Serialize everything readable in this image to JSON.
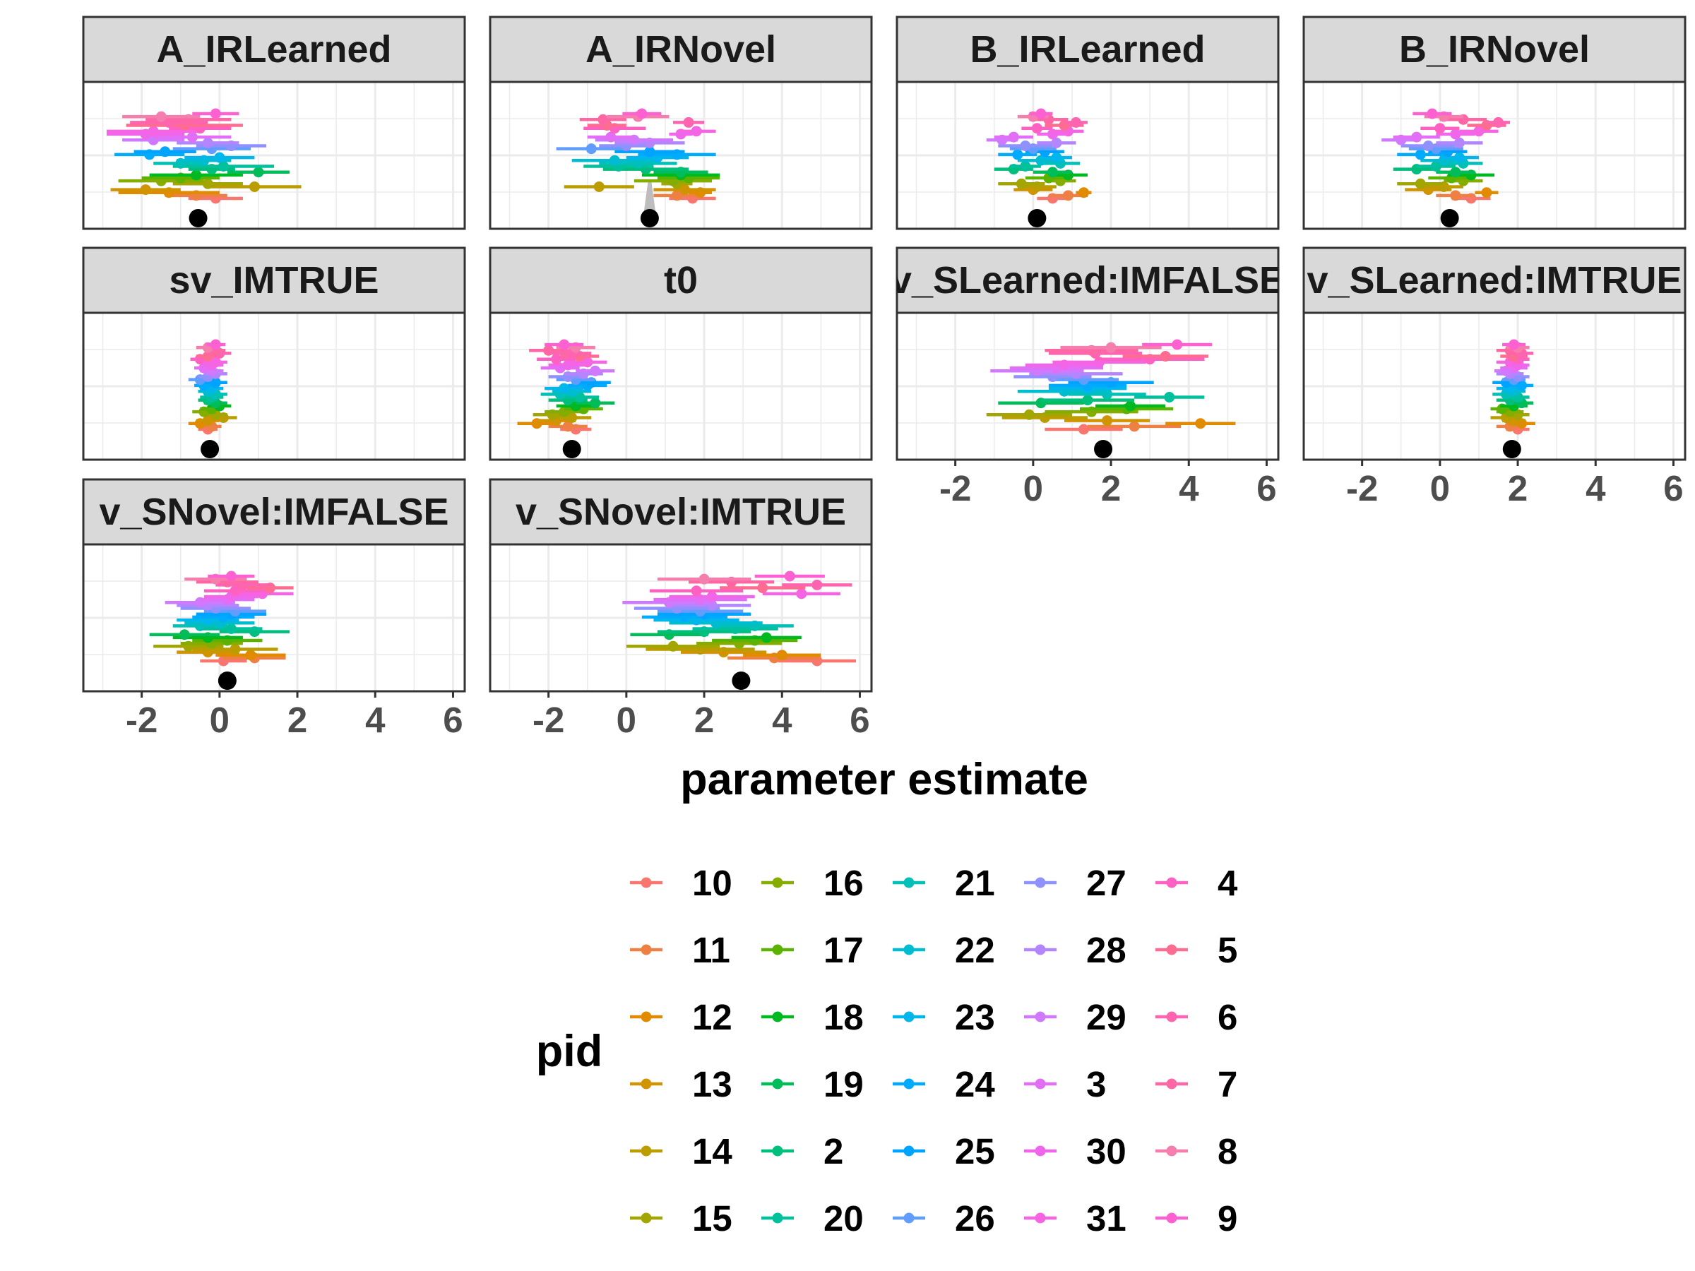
{
  "chart_data": {
    "type": "scatter",
    "facet_variable_order": [
      "A_IRLearned",
      "A_IRNovel",
      "B_IRLearned",
      "B_IRNovel",
      "sv_IMTRUE",
      "t0",
      "v_SLearned:IMFALSE",
      "v_SLearned:IMTRUE",
      "v_SNovel:IMFALSE",
      "v_SNovel:IMTRUE"
    ],
    "xlabel": "parameter estimate",
    "ylabel": "",
    "xlim": [
      -3.5,
      6.3
    ],
    "x_ticks": [
      -2,
      0,
      2,
      4,
      6
    ],
    "x_tick_labels": [
      "-2",
      "0",
      "2",
      "4",
      "6"
    ],
    "grid": true,
    "legend_title": "pid",
    "legend_placement": "bottom",
    "participants": [
      "10",
      "11",
      "12",
      "13",
      "14",
      "15",
      "16",
      "17",
      "18",
      "19",
      "2",
      "20",
      "21",
      "22",
      "23",
      "24",
      "25",
      "26",
      "27",
      "28",
      "29",
      "3",
      "30",
      "31",
      "4",
      "5",
      "6",
      "7",
      "8",
      "9"
    ],
    "participant_colors": [
      "#F8766D",
      "#EE8043",
      "#E08B00",
      "#CF9400",
      "#BB9D00",
      "#A3A500",
      "#85AD00",
      "#5BB300",
      "#00B81F",
      "#00BC59",
      "#00BF7D",
      "#00C19C",
      "#00C0B7",
      "#00BCD1",
      "#00B6EB",
      "#00ABFD",
      "#00A3FF",
      "#619CFF",
      "#8F91FF",
      "#B385FF",
      "#D079FF",
      "#E36EF6",
      "#F066EA",
      "#F564E3",
      "#FF61C3",
      "#FF6C91",
      "#FF64B0",
      "#FF67A4",
      "#F47FAE",
      "#FD61D1"
    ],
    "facets": [
      {
        "title": "A_IRLearned",
        "group_estimate": -0.55,
        "estimates": [
          -0.1,
          -0.6,
          -1.3,
          -1.9,
          0.9,
          -0.3,
          -1.5,
          -1.0,
          -0.6,
          1.0,
          -0.2,
          0.1,
          -1.0,
          -0.4,
          0.0,
          -1.8,
          -1.4,
          -0.2,
          0.3,
          -0.3,
          -1.7,
          -0.7,
          -1.9,
          -1.7,
          -0.5,
          -0.9,
          -1.3,
          -0.8,
          -1.5,
          -0.1
        ],
        "half_widths": [
          0.7,
          0.8,
          1.3,
          0.9,
          1.2,
          0.9,
          1.1,
          1.0,
          1.2,
          0.8,
          0.6,
          1.3,
          0.7,
          0.7,
          0.9,
          0.9,
          0.8,
          1.0,
          0.9,
          0.8,
          0.8,
          1.0,
          1.0,
          1.2,
          0.8,
          1.5,
          1.0,
          1.1,
          1.0,
          0.6
        ]
      },
      {
        "title": "A_IRNovel",
        "group_estimate": 0.6,
        "estimates": [
          1.7,
          1.3,
          1.9,
          1.5,
          -0.7,
          1.3,
          1.2,
          1.6,
          1.4,
          1.4,
          0.5,
          -0.2,
          0.3,
          -0.3,
          0.8,
          1.3,
          0.6,
          -0.9,
          0.0,
          0.6,
          0.2,
          -0.4,
          1.4,
          1.8,
          -0.3,
          -0.5,
          1.6,
          -0.6,
          0.3,
          0.4
        ],
        "half_widths": [
          0.6,
          0.6,
          0.3,
          0.8,
          0.9,
          0.4,
          1.0,
          0.8,
          1.0,
          0.7,
          1.1,
          0.9,
          1.0,
          1.1,
          0.8,
          1.0,
          0.9,
          0.9,
          0.7,
          0.9,
          1.0,
          0.6,
          0.3,
          0.5,
          0.8,
          0.5,
          0.4,
          0.6,
          0.8,
          0.5
        ],
        "has_thin_band": true
      },
      {
        "title": "B_IRLearned",
        "group_estimate": 0.1,
        "estimates": [
          0.5,
          0.9,
          1.3,
          0.0,
          0.1,
          -0.3,
          0.7,
          0.4,
          0.9,
          0.5,
          -0.5,
          -0.2,
          0.7,
          0.2,
          0.6,
          -0.4,
          0.3,
          0.0,
          -0.2,
          0.6,
          -0.8,
          -0.5,
          0.5,
          0.9,
          0.1,
          0.8,
          1.1,
          0.4,
          0.0,
          0.2
        ],
        "half_widths": [
          0.4,
          0.5,
          0.2,
          0.5,
          0.5,
          0.6,
          0.4,
          0.6,
          0.5,
          0.5,
          0.5,
          0.4,
          0.5,
          0.6,
          0.4,
          0.5,
          0.5,
          0.6,
          0.7,
          0.5,
          0.4,
          0.5,
          0.4,
          0.4,
          0.4,
          0.5,
          0.3,
          0.5,
          0.4,
          0.3
        ]
      },
      {
        "title": "B_IRNovel",
        "group_estimate": 0.25,
        "estimates": [
          0.8,
          0.4,
          1.2,
          -0.3,
          0.1,
          -0.5,
          0.6,
          0.3,
          0.8,
          0.4,
          -0.6,
          -0.1,
          0.6,
          0.1,
          0.5,
          -0.5,
          0.2,
          -0.1,
          -0.3,
          0.5,
          -1.0,
          -0.6,
          0.4,
          1.0,
          0.0,
          1.2,
          1.5,
          0.6,
          0.1,
          -0.2
        ],
        "half_widths": [
          0.5,
          0.5,
          0.3,
          0.6,
          0.5,
          0.6,
          0.5,
          0.6,
          0.6,
          0.5,
          0.6,
          0.5,
          0.5,
          0.6,
          0.5,
          0.6,
          0.5,
          0.7,
          0.7,
          0.6,
          0.5,
          0.6,
          0.5,
          0.5,
          0.5,
          0.5,
          0.3,
          0.6,
          0.5,
          0.5
        ]
      },
      {
        "title": "sv_IMTRUE",
        "group_estimate": -0.25,
        "estimates": [
          -0.3,
          -0.2,
          -0.5,
          -0.3,
          0.1,
          -0.1,
          -0.4,
          -0.2,
          0.0,
          -0.1,
          -0.3,
          -0.2,
          -0.1,
          -0.3,
          -0.2,
          -0.4,
          -0.1,
          -0.5,
          -0.3,
          -0.1,
          -0.2,
          -0.4,
          -0.2,
          -0.1,
          -0.5,
          -0.3,
          0.0,
          -0.1,
          -0.3,
          -0.1
        ],
        "half_widths": [
          0.25,
          0.25,
          0.3,
          0.3,
          0.35,
          0.3,
          0.3,
          0.3,
          0.3,
          0.3,
          0.25,
          0.3,
          0.3,
          0.25,
          0.3,
          0.25,
          0.3,
          0.3,
          0.25,
          0.3,
          0.3,
          0.25,
          0.3,
          0.3,
          0.25,
          0.3,
          0.3,
          0.25,
          0.3,
          0.25
        ]
      },
      {
        "title": "t0",
        "group_estimate": -1.4,
        "estimates": [
          -1.3,
          -1.5,
          -2.3,
          -1.8,
          -1.4,
          -1.9,
          -1.6,
          -1.1,
          -1.3,
          -0.8,
          -1.5,
          -1.2,
          -1.7,
          -1.4,
          -1.6,
          -1.0,
          -0.9,
          -1.3,
          -1.5,
          -1.1,
          -0.8,
          -1.7,
          -1.5,
          -1.0,
          -1.8,
          -1.2,
          -1.4,
          -2.0,
          -1.3,
          -1.6
        ],
        "half_widths": [
          0.4,
          0.5,
          0.5,
          0.5,
          0.5,
          0.5,
          0.5,
          0.5,
          0.5,
          0.5,
          0.5,
          0.5,
          0.5,
          0.5,
          0.5,
          0.5,
          0.5,
          0.5,
          0.5,
          0.5,
          0.5,
          0.5,
          0.5,
          0.5,
          0.5,
          0.5,
          0.5,
          0.5,
          0.5,
          0.5
        ]
      },
      {
        "title": "v_SLearned:IMFALSE",
        "group_estimate": 1.8,
        "estimates": [
          1.3,
          2.6,
          4.3,
          1.9,
          0.3,
          -0.1,
          1.5,
          2.4,
          2.5,
          0.2,
          1.4,
          3.5,
          1.9,
          0.8,
          1.4,
          1.4,
          2.0,
          1.3,
          0.5,
          1.1,
          0.1,
          0.6,
          0.8,
          1.7,
          3.0,
          3.4,
          1.6,
          1.5,
          2.0,
          3.7
        ],
        "half_widths": [
          1.0,
          1.2,
          0.9,
          1.1,
          1.1,
          1.1,
          1.2,
          1.2,
          0.9,
          1.1,
          1.2,
          0.9,
          1.0,
          1.2,
          1.0,
          1.0,
          1.1,
          0.9,
          1.0,
          1.2,
          1.2,
          1.2,
          1.0,
          1.2,
          1.4,
          1.1,
          1.2,
          1.2,
          1.3,
          0.9
        ]
      },
      {
        "title": "v_SLearned:IMTRUE",
        "group_estimate": 1.85,
        "estimates": [
          2.0,
          1.8,
          2.1,
          1.9,
          1.7,
          2.0,
          1.8,
          1.6,
          1.9,
          2.1,
          1.8,
          2.0,
          1.7,
          1.9,
          1.8,
          2.1,
          1.7,
          1.9,
          2.0,
          1.8,
          1.7,
          1.9,
          2.0,
          1.8,
          2.0,
          1.9,
          2.1,
          1.8,
          2.0,
          1.9
        ],
        "half_widths": [
          0.3,
          0.35,
          0.35,
          0.3,
          0.4,
          0.3,
          0.35,
          0.3,
          0.35,
          0.3,
          0.35,
          0.3,
          0.35,
          0.3,
          0.35,
          0.3,
          0.35,
          0.3,
          0.3,
          0.35,
          0.3,
          0.35,
          0.3,
          0.35,
          0.3,
          0.35,
          0.3,
          0.35,
          0.3,
          0.3
        ]
      },
      {
        "title": "v_SNovel:IMFALSE",
        "group_estimate": 0.2,
        "estimates": [
          0.1,
          0.9,
          0.8,
          -0.3,
          0.4,
          -0.8,
          -0.2,
          0.2,
          -0.3,
          -0.9,
          0.9,
          0.3,
          -0.5,
          0.0,
          -0.3,
          0.1,
          0.3,
          0.4,
          -0.1,
          -0.3,
          -0.5,
          0.2,
          0.3,
          1.1,
          0.4,
          1.3,
          0.6,
          0.2,
          -0.1,
          0.3
        ],
        "half_widths": [
          0.6,
          0.8,
          0.9,
          0.8,
          1.1,
          0.9,
          0.8,
          0.9,
          0.9,
          0.9,
          0.9,
          0.8,
          0.7,
          0.9,
          0.8,
          0.8,
          0.9,
          0.8,
          0.9,
          0.8,
          0.9,
          0.7,
          0.7,
          0.8,
          0.8,
          0.6,
          0.7,
          0.8,
          0.8,
          0.6
        ]
      },
      {
        "title": "v_SNovel:IMTRUE",
        "group_estimate": 2.95,
        "estimates": [
          4.9,
          3.8,
          4.0,
          2.5,
          1.9,
          1.2,
          2.9,
          3.3,
          3.6,
          1.1,
          2.0,
          2.8,
          3.3,
          2.3,
          1.8,
          1.5,
          2.0,
          1.9,
          1.3,
          2.2,
          1.1,
          1.9,
          2.2,
          4.5,
          1.8,
          3.5,
          4.9,
          2.7,
          2.0,
          4.2
        ],
        "half_widths": [
          1.0,
          1.2,
          1.0,
          1.1,
          1.4,
          1.2,
          1.1,
          1.1,
          0.9,
          1.0,
          1.2,
          1.1,
          1.0,
          1.2,
          1.1,
          1.1,
          1.2,
          1.1,
          1.1,
          1.0,
          1.2,
          1.2,
          1.1,
          1.0,
          1.2,
          1.1,
          0.9,
          1.1,
          1.2,
          0.9
        ]
      }
    ]
  }
}
